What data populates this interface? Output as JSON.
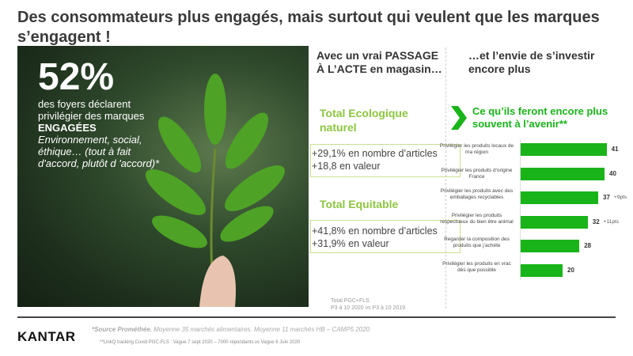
{
  "title": "Des consommateurs plus engagés, mais surtout qui veulent que les marques s’engagent !",
  "stat": {
    "value": "52%",
    "line1": "des foyers déclarent privilégier des marques",
    "emphasis": "ENGAGÉES",
    "italic": "Environnement, social, éthique… (tout à fait d'accord, plutôt d 'accord)*"
  },
  "middle": {
    "heading": "Avec un vrai PASSAGE À L’ACTE en magasin…",
    "groups": [
      {
        "title": "Total Ecologique naturel",
        "line1": "+29,1% en nombre d’articles",
        "line2": "+18,8 en valeur"
      },
      {
        "title": "Total Equitable",
        "line1": "+41,8% en nombre d’articles",
        "line2": "+31,9% en valeur"
      }
    ],
    "note1": "Total PGC+FLS",
    "note2": "P3 à 10 2020 vs P3 à 10 2019"
  },
  "right": {
    "heading": "…et l’envie de s’investir encore plus",
    "chart_title": "Ce qu’ils feront encore plus souvent à l’avenir**"
  },
  "chart_data": {
    "type": "bar",
    "orientation": "horizontal",
    "title": "Ce qu’ils feront encore plus souvent à l’avenir**",
    "categories": [
      "Privilégier les produits locaux de ma région",
      "Privilégier les produits d'origine France",
      "Privilégier les produits avec des emballages recyclables",
      "Privilégier les produits respectueux du bien être animal",
      "Regarder la composition des produits que j’achète",
      "Privilégier les produits en vrac dès que possible"
    ],
    "values": [
      41,
      40,
      37,
      32,
      28,
      20
    ],
    "value_labels": [
      "41",
      "40",
      "37",
      "32",
      "28",
      "20"
    ],
    "annotations": [
      "",
      "",
      "+9pts",
      "+11pts",
      "",
      ""
    ],
    "color": "#19b419"
  },
  "footer": {
    "logo": "KANTAR",
    "source_bold": "*Source Prométhée.",
    "source_rest": " Moyenne 35 marchés alimentaires. Moyenne 11 marchés HB – CAMP5 2020",
    "source2": "**LinkQ tracking Covid PGC-FLS : Vague 7 sept 2020 – 7000 répondants vs Vague 6 Juin 2020"
  }
}
